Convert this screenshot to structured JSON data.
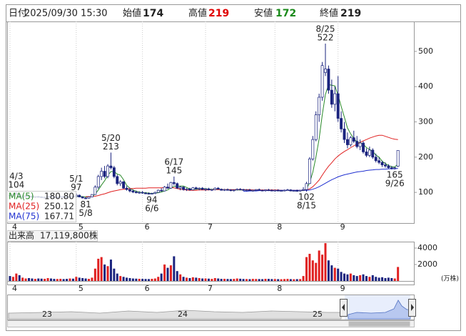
{
  "header": [
    {
      "label": "日付",
      "value": "2025/09/30 15:30"
    },
    {
      "label": "始値",
      "value": "174",
      "color": "#222222"
    },
    {
      "label": "高値",
      "value": "219",
      "color": "#e00000"
    },
    {
      "label": "安値",
      "value": "172",
      "color": "#1a8a1a"
    },
    {
      "label": "終値",
      "value": "219",
      "color": "#222222"
    }
  ],
  "chart_data": {
    "type": "candlestick",
    "ylim": [
      13,
      585
    ],
    "yticks": [
      100,
      200,
      300,
      400,
      500
    ],
    "xticks": [
      {
        "value": 0,
        "label": "4"
      },
      {
        "value": 21,
        "label": "5"
      },
      {
        "value": 42,
        "label": "6"
      },
      {
        "value": 62,
        "label": "7"
      },
      {
        "value": 84,
        "label": "8"
      },
      {
        "value": 104,
        "label": "9"
      }
    ],
    "up_color": "#ffffff",
    "down_color": "#1a237e",
    "outline_color": "#1a237e",
    "candles": [
      [
        92,
        96,
        88,
        90
      ],
      [
        90,
        95,
        86,
        93
      ],
      [
        95,
        104,
        92,
        97
      ],
      [
        94,
        96,
        85,
        87
      ],
      [
        86,
        90,
        82,
        88
      ],
      [
        88,
        92,
        85,
        90
      ],
      [
        90,
        93,
        87,
        89
      ],
      [
        89,
        91,
        85,
        86
      ],
      [
        86,
        89,
        84,
        88
      ],
      [
        88,
        90,
        85,
        87
      ],
      [
        87,
        89,
        84,
        85
      ],
      [
        85,
        88,
        83,
        86
      ],
      [
        86,
        90,
        84,
        89
      ],
      [
        89,
        92,
        86,
        87
      ],
      [
        87,
        89,
        84,
        85
      ],
      [
        85,
        88,
        83,
        87
      ],
      [
        87,
        90,
        85,
        88
      ],
      [
        88,
        91,
        86,
        87
      ],
      [
        87,
        89,
        84,
        86
      ],
      [
        86,
        90,
        85,
        89
      ],
      [
        89,
        92,
        86,
        88
      ],
      [
        88,
        97,
        87,
        92
      ],
      [
        92,
        94,
        86,
        87
      ],
      [
        87,
        89,
        83,
        84
      ],
      [
        84,
        86,
        81,
        83
      ],
      [
        83,
        88,
        82,
        87
      ],
      [
        87,
        95,
        86,
        94
      ],
      [
        94,
        120,
        93,
        115
      ],
      [
        115,
        150,
        110,
        145
      ],
      [
        145,
        170,
        135,
        160
      ],
      [
        160,
        175,
        140,
        145
      ],
      [
        145,
        180,
        140,
        175
      ],
      [
        175,
        213,
        165,
        170
      ],
      [
        170,
        175,
        140,
        145
      ],
      [
        145,
        150,
        120,
        125
      ],
      [
        125,
        135,
        118,
        130
      ],
      [
        130,
        132,
        110,
        112
      ],
      [
        112,
        118,
        105,
        108
      ],
      [
        108,
        112,
        100,
        104
      ],
      [
        104,
        108,
        98,
        101
      ],
      [
        101,
        105,
        97,
        99
      ],
      [
        99,
        103,
        96,
        100
      ],
      [
        100,
        104,
        96,
        98
      ],
      [
        98,
        101,
        95,
        97
      ],
      [
        97,
        100,
        95,
        96
      ],
      [
        96,
        99,
        94,
        97
      ],
      [
        97,
        102,
        95,
        100
      ],
      [
        100,
        108,
        99,
        106
      ],
      [
        106,
        112,
        102,
        104
      ],
      [
        104,
        118,
        103,
        115
      ],
      [
        115,
        125,
        110,
        112
      ],
      [
        112,
        130,
        110,
        128
      ],
      [
        128,
        145,
        120,
        125
      ],
      [
        125,
        128,
        110,
        112
      ],
      [
        112,
        118,
        106,
        115
      ],
      [
        115,
        117,
        105,
        108
      ],
      [
        108,
        112,
        104,
        110
      ],
      [
        110,
        113,
        105,
        107
      ],
      [
        107,
        115,
        106,
        113
      ],
      [
        113,
        116,
        108,
        110
      ],
      [
        110,
        114,
        106,
        112
      ],
      [
        112,
        115,
        107,
        108
      ],
      [
        108,
        112,
        104,
        110
      ],
      [
        110,
        113,
        106,
        107
      ],
      [
        107,
        110,
        104,
        108
      ],
      [
        108,
        114,
        106,
        112
      ],
      [
        112,
        115,
        108,
        109
      ],
      [
        109,
        111,
        105,
        106
      ],
      [
        106,
        110,
        104,
        108
      ],
      [
        108,
        111,
        105,
        107
      ],
      [
        107,
        109,
        103,
        105
      ],
      [
        105,
        108,
        102,
        107
      ],
      [
        107,
        111,
        105,
        109
      ],
      [
        109,
        112,
        106,
        108
      ],
      [
        108,
        110,
        104,
        106
      ],
      [
        106,
        109,
        103,
        107
      ],
      [
        107,
        110,
        104,
        105
      ],
      [
        105,
        108,
        102,
        106
      ],
      [
        106,
        109,
        104,
        108
      ],
      [
        108,
        111,
        105,
        106
      ],
      [
        106,
        108,
        103,
        105
      ],
      [
        105,
        108,
        102,
        107
      ],
      [
        107,
        110,
        104,
        106
      ],
      [
        106,
        109,
        103,
        105
      ],
      [
        105,
        108,
        102,
        106
      ],
      [
        106,
        109,
        103,
        104
      ],
      [
        104,
        107,
        102,
        105
      ],
      [
        105,
        108,
        103,
        106
      ],
      [
        106,
        110,
        104,
        107
      ],
      [
        107,
        109,
        103,
        104
      ],
      [
        104,
        107,
        102,
        105
      ],
      [
        105,
        108,
        103,
        104
      ],
      [
        104,
        107,
        102,
        106
      ],
      [
        106,
        115,
        104,
        108
      ],
      [
        108,
        130,
        102,
        125
      ],
      [
        125,
        200,
        124,
        195
      ],
      [
        195,
        260,
        190,
        250
      ],
      [
        250,
        330,
        245,
        320
      ],
      [
        320,
        380,
        300,
        370
      ],
      [
        370,
        470,
        360,
        460
      ],
      [
        440,
        522,
        430,
        450
      ],
      [
        450,
        460,
        380,
        390
      ],
      [
        390,
        420,
        340,
        350
      ],
      [
        350,
        400,
        330,
        380
      ],
      [
        380,
        430,
        300,
        310
      ],
      [
        310,
        330,
        270,
        280
      ],
      [
        280,
        300,
        240,
        250
      ],
      [
        250,
        270,
        225,
        235
      ],
      [
        235,
        260,
        230,
        255
      ],
      [
        255,
        275,
        240,
        245
      ],
      [
        245,
        260,
        225,
        230
      ],
      [
        230,
        250,
        220,
        240
      ],
      [
        240,
        245,
        210,
        215
      ],
      [
        215,
        225,
        200,
        205
      ],
      [
        205,
        230,
        200,
        220
      ],
      [
        220,
        225,
        195,
        200
      ],
      [
        200,
        210,
        185,
        190
      ],
      [
        190,
        200,
        180,
        185
      ],
      [
        185,
        190,
        172,
        178
      ],
      [
        178,
        185,
        170,
        175
      ],
      [
        175,
        180,
        167,
        170
      ],
      [
        170,
        175,
        165,
        168
      ],
      [
        168,
        172,
        165,
        170
      ],
      [
        174,
        219,
        172,
        219
      ]
    ],
    "series": [
      {
        "name": "MA(5)",
        "color": "#2a8a2a",
        "last": {
          "value": 180.8,
          "label": "180.80"
        },
        "values": [
          null,
          null,
          null,
          null,
          91,
          90,
          89,
          88,
          88,
          88,
          87,
          86,
          87,
          87,
          86,
          86,
          87,
          87,
          87,
          87,
          88,
          88,
          89,
          88,
          87,
          87,
          88,
          95,
          107,
          121,
          133,
          148,
          159,
          159,
          152,
          149,
          136,
          120,
          112,
          107,
          103,
          101,
          99,
          99,
          98,
          97,
          98,
          99,
          101,
          104,
          107,
          113,
          117,
          118,
          118,
          118,
          114,
          110,
          109,
          109,
          110,
          110,
          111,
          109,
          109,
          109,
          109,
          108,
          108,
          108,
          107,
          107,
          107,
          107,
          107,
          107,
          107,
          106,
          106,
          106,
          106,
          106,
          106,
          106,
          106,
          105,
          105,
          105,
          106,
          105,
          105,
          105,
          105,
          105,
          110,
          128,
          157,
          200,
          252,
          320,
          378,
          406,
          404,
          402,
          376,
          344,
          314,
          283,
          266,
          253,
          243,
          241,
          237,
          227,
          222,
          216,
          206,
          200,
          188,
          182,
          176,
          173,
          172,
          181
        ]
      },
      {
        "name": "MA(25)",
        "color": "#e02020",
        "last": {
          "value": 250.12,
          "label": "250.12"
        },
        "values": [
          null,
          null,
          null,
          null,
          null,
          null,
          null,
          null,
          null,
          null,
          null,
          null,
          null,
          null,
          null,
          null,
          null,
          null,
          null,
          null,
          null,
          null,
          null,
          null,
          88,
          88,
          88,
          89,
          91,
          94,
          96,
          99,
          102,
          104,
          106,
          108,
          109,
          110,
          111,
          111,
          112,
          112,
          112,
          112,
          113,
          113,
          113,
          113,
          113,
          114,
          114,
          114,
          113,
          111,
          109,
          108,
          107,
          106,
          106,
          106,
          107,
          107,
          107,
          107,
          108,
          108,
          108,
          108,
          108,
          108,
          108,
          108,
          108,
          108,
          108,
          108,
          108,
          107,
          107,
          107,
          107,
          107,
          107,
          107,
          107,
          107,
          106,
          106,
          106,
          106,
          106,
          106,
          106,
          106,
          107,
          110,
          116,
          125,
          135,
          149,
          162,
          174,
          184,
          195,
          203,
          210,
          216,
          221,
          227,
          232,
          237,
          242,
          246,
          250,
          254,
          257,
          260,
          262,
          262,
          259,
          256,
          253,
          251,
          250
        ]
      },
      {
        "name": "MA(75)",
        "color": "#2030d0",
        "last": {
          "value": 167.71,
          "label": "167.71"
        },
        "values": [
          null,
          null,
          null,
          null,
          null,
          null,
          null,
          null,
          null,
          null,
          null,
          null,
          null,
          null,
          null,
          null,
          null,
          null,
          null,
          null,
          null,
          null,
          null,
          null,
          null,
          null,
          null,
          null,
          null,
          null,
          null,
          null,
          null,
          null,
          null,
          null,
          null,
          null,
          null,
          null,
          null,
          null,
          null,
          null,
          null,
          null,
          null,
          null,
          null,
          null,
          null,
          null,
          null,
          null,
          null,
          null,
          null,
          null,
          null,
          null,
          null,
          null,
          null,
          null,
          null,
          null,
          null,
          null,
          null,
          null,
          null,
          null,
          null,
          null,
          103,
          103,
          104,
          104,
          104,
          105,
          105,
          105,
          105,
          105,
          105,
          106,
          106,
          106,
          106,
          106,
          106,
          106,
          106,
          106,
          106,
          107,
          109,
          112,
          116,
          121,
          126,
          131,
          136,
          140,
          144,
          147,
          150,
          152,
          154,
          156,
          158,
          159,
          160,
          162,
          163,
          164,
          165,
          165,
          166,
          166,
          167,
          167,
          167,
          168
        ]
      }
    ],
    "annotations": [
      {
        "x": 2,
        "side": "high",
        "date": "4/3",
        "price": 104
      },
      {
        "x": 21,
        "side": "high",
        "date": "5/1",
        "price": 97
      },
      {
        "x": 24,
        "side": "low",
        "date": "5/8",
        "price": 81
      },
      {
        "x": 32,
        "side": "high",
        "date": "5/20",
        "price": 213
      },
      {
        "x": 45,
        "side": "low",
        "date": "6/6",
        "price": 94
      },
      {
        "x": 52,
        "side": "high",
        "date": "6/17",
        "price": 145
      },
      {
        "x": 94,
        "side": "low",
        "date": "8/15",
        "price": 102
      },
      {
        "x": 100,
        "side": "high",
        "date": "8/25",
        "price": 522
      },
      {
        "x": 122,
        "side": "low",
        "date": "9/26",
        "price": 165
      }
    ],
    "volume": {
      "title": "出来高",
      "today": "17,119,800株",
      "unit": "(万株)",
      "ylim": [
        0,
        4780
      ],
      "yticks": [
        2000,
        4000
      ],
      "values": [
        600,
        500,
        900,
        700,
        400,
        300,
        350,
        300,
        250,
        300,
        280,
        260,
        350,
        300,
        250,
        240,
        260,
        230,
        250,
        300,
        280,
        500,
        400,
        350,
        300,
        250,
        400,
        1500,
        2700,
        2900,
        2000,
        1800,
        2600,
        1500,
        900,
        600,
        500,
        400,
        350,
        300,
        280,
        260,
        250,
        240,
        230,
        260,
        300,
        500,
        900,
        2000,
        1600,
        1900,
        3000,
        1200,
        800,
        500,
        400,
        350,
        450,
        400,
        350,
        300,
        300,
        280,
        250,
        350,
        300,
        250,
        260,
        240,
        230,
        250,
        300,
        270,
        240,
        230,
        220,
        250,
        240,
        230,
        220,
        260,
        250,
        230,
        230,
        220,
        210,
        230,
        250,
        220,
        210,
        220,
        230,
        600,
        2900,
        3300,
        2500,
        2200,
        3700,
        3200,
        4600,
        2500,
        1900,
        1600,
        1500,
        1100,
        900,
        800,
        900,
        700,
        600,
        700,
        800,
        600,
        500,
        700,
        500,
        400,
        450,
        350,
        400,
        350,
        300,
        1700
      ],
      "up_color": "#e02020",
      "down_color": "#1a237e"
    },
    "navigator": {
      "labels": [
        "23",
        "24",
        "25"
      ]
    }
  }
}
